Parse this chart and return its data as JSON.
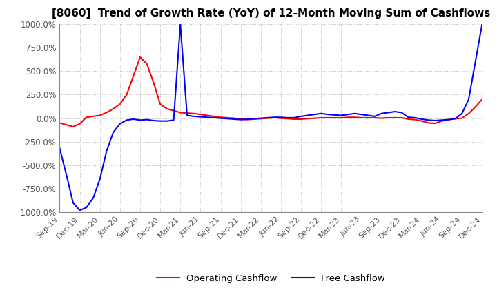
{
  "title": "[8060]  Trend of Growth Rate (YoY) of 12-Month Moving Sum of Cashflows",
  "title_fontsize": 11,
  "ylim": [
    -1000,
    1000
  ],
  "yticks": [
    -1000,
    -750,
    -500,
    -250,
    0,
    250,
    500,
    750,
    1000
  ],
  "ytick_labels": [
    "-1000.0%",
    "-750.0%",
    "-500.0%",
    "-250.0%",
    "0.0%",
    "250.0%",
    "500.0%",
    "750.0%",
    "1000.0%"
  ],
  "background_color": "#ffffff",
  "grid_color": "#bbbbbb",
  "legend_items": [
    "Operating Cashflow",
    "Free Cashflow"
  ],
  "operating_color": "#ff0000",
  "free_color": "#0000ff",
  "line_width": 1.5,
  "xtick_labels": [
    "Sep-19",
    "Dec-19",
    "Mar-20",
    "Jun-20",
    "Sep-20",
    "Dec-20",
    "Mar-21",
    "Jun-21",
    "Sep-21",
    "Dec-21",
    "Mar-22",
    "Jun-22",
    "Sep-22",
    "Dec-22",
    "Mar-23",
    "Jun-23",
    "Sep-23",
    "Dec-23",
    "Mar-24",
    "Jun-24",
    "Sep-24",
    "Dec-24"
  ],
  "n_points": 64,
  "operating_cashflow": [
    -50,
    -70,
    -90,
    -60,
    10,
    20,
    30,
    60,
    100,
    150,
    250,
    450,
    650,
    580,
    380,
    150,
    100,
    80,
    60,
    55,
    50,
    40,
    30,
    20,
    10,
    5,
    0,
    -10,
    -15,
    -10,
    -5,
    0,
    5,
    0,
    -5,
    -10,
    -10,
    -5,
    0,
    5,
    5,
    5,
    5,
    10,
    10,
    5,
    5,
    5,
    0,
    5,
    5,
    5,
    -10,
    -15,
    -30,
    -50,
    -55,
    -30,
    -15,
    -5,
    0,
    50,
    120,
    200
  ],
  "free_cashflow": [
    -320,
    -600,
    -900,
    -980,
    -950,
    -850,
    -650,
    -350,
    -150,
    -60,
    -20,
    -10,
    -20,
    -15,
    -25,
    -30,
    -30,
    -20,
    1000,
    30,
    20,
    15,
    10,
    5,
    0,
    -5,
    -10,
    -15,
    -10,
    -5,
    0,
    5,
    10,
    10,
    5,
    5,
    20,
    30,
    40,
    50,
    40,
    35,
    30,
    40,
    50,
    40,
    30,
    20,
    50,
    60,
    70,
    60,
    10,
    5,
    -10,
    -20,
    -25,
    -20,
    -15,
    -5,
    50,
    200,
    600,
    1000
  ]
}
